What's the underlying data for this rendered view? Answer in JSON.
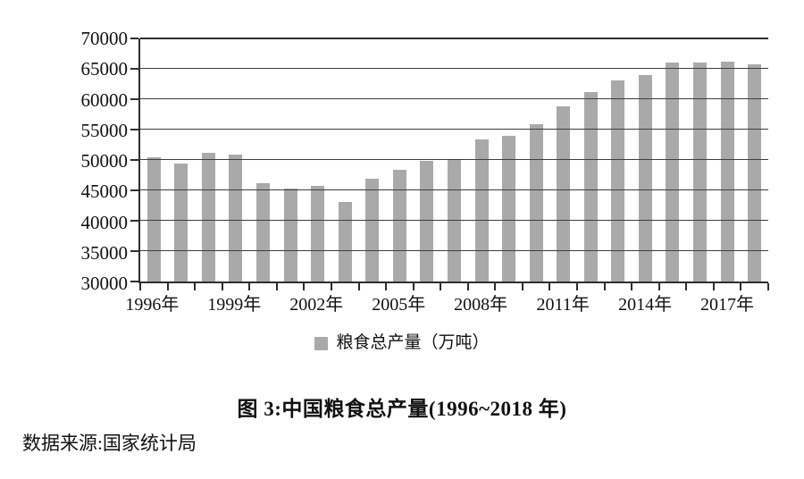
{
  "figure": {
    "caption": "图 3:中国粮食总产量(1996~2018 年)",
    "source": "数据来源:国家统计局"
  },
  "chart_data": {
    "type": "bar",
    "title": "图 3:中国粮食总产量(1996~2018 年)",
    "legend_label": "粮食总产量（万吨）",
    "legend_position": "bottom",
    "grid": "horizontal",
    "categories": [
      "1996年",
      "1997年",
      "1998年",
      "1999年",
      "2000年",
      "2001年",
      "2002年",
      "2003年",
      "2004年",
      "2005年",
      "2006年",
      "2007年",
      "2008年",
      "2009年",
      "2010年",
      "2011年",
      "2012年",
      "2013年",
      "2014年",
      "2015年",
      "2016年",
      "2017年",
      "2018年"
    ],
    "values": [
      50454,
      49417,
      51230,
      50839,
      46218,
      45264,
      45706,
      43070,
      46947,
      48402,
      49804,
      50160,
      53434,
      53941,
      55911,
      58849,
      61223,
      63048,
      63965,
      66060,
      66044,
      66161,
      65789
    ],
    "ylabel": "",
    "xlabel": "",
    "ylim": [
      30000,
      70000
    ],
    "ytick_step": 5000,
    "ytick_labels": [
      "30000",
      "35000",
      "40000",
      "45000",
      "50000",
      "55000",
      "60000",
      "65000",
      "70000"
    ],
    "xtick_labels": [
      "1996年",
      "1999年",
      "2002年",
      "2005年",
      "2008年",
      "2011年",
      "2014年",
      "2017年"
    ],
    "xtick_positions": [
      0,
      3,
      6,
      9,
      12,
      15,
      18,
      21
    ],
    "bar_color": "#a9a9a9",
    "source_note": "数据来源:国家统计局"
  },
  "colors": {
    "bar": "#a9a9a9",
    "grid": "#3e3e3e",
    "axis": "#2e2e2e",
    "text": "#111111"
  }
}
